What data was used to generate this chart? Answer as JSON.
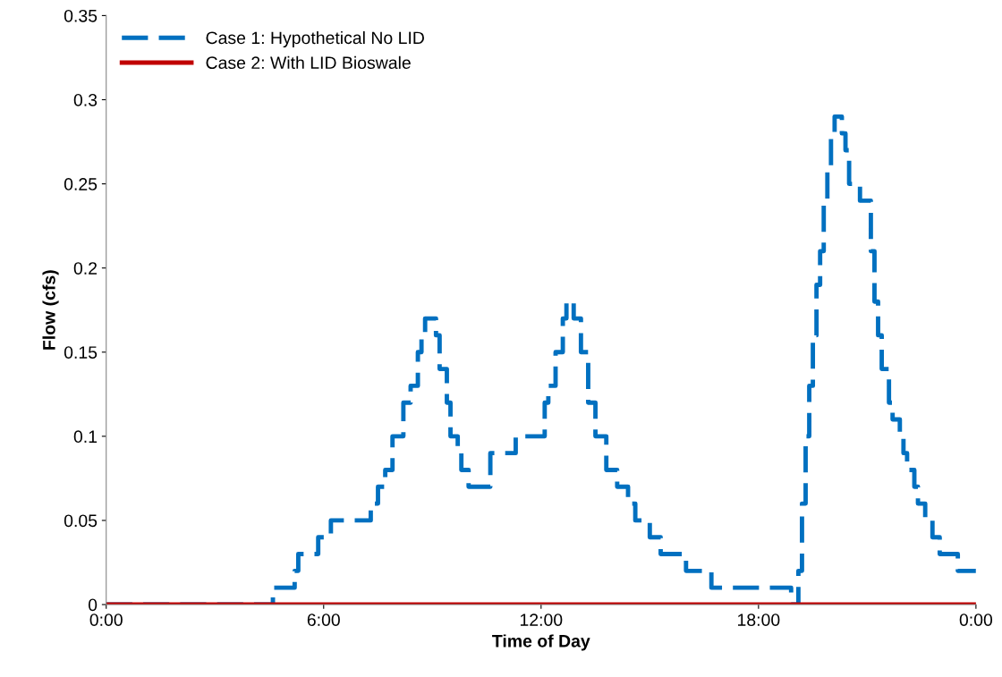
{
  "chart_data": {
    "type": "step",
    "xlabel": "Time of Day",
    "ylabel": "Flow (cfs)",
    "xlim": [
      0,
      24
    ],
    "ylim": [
      0,
      0.35
    ],
    "xticks": [
      {
        "value": 0,
        "label": "0:00"
      },
      {
        "value": 6,
        "label": "6:00"
      },
      {
        "value": 12,
        "label": "12:00"
      },
      {
        "value": 18,
        "label": "18:00"
      },
      {
        "value": 24,
        "label": "0:00"
      }
    ],
    "yticks": [
      0,
      0.05,
      0.1,
      0.15,
      0.2,
      0.25,
      0.3,
      0.35
    ],
    "grid": false,
    "legend": "top left",
    "marker": "none",
    "series": [
      {
        "name": "Case 1: Hypothetical No LID",
        "color": "#0070c0",
        "line_style": "dashed",
        "x": [
          0,
          4.6,
          5.2,
          5.3,
          5.85,
          6.2,
          7.3,
          7.5,
          7.7,
          7.9,
          8.2,
          8.4,
          8.6,
          8.7,
          8.8,
          9.1,
          9.2,
          9.4,
          9.5,
          9.7,
          9.8,
          10.0,
          10.6,
          11.3,
          12.1,
          12.2,
          12.4,
          12.6,
          12.7,
          12.9,
          13.1,
          13.3,
          13.5,
          13.8,
          14.1,
          14.4,
          14.6,
          15.0,
          15.3,
          16.0,
          16.7,
          18.9,
          19.1,
          19.2,
          19.3,
          19.4,
          19.5,
          19.6,
          19.7,
          19.8,
          19.9,
          20.0,
          20.1,
          20.3,
          20.4,
          20.5,
          20.8,
          21.1,
          21.2,
          21.3,
          21.4,
          21.6,
          21.7,
          21.9,
          22.0,
          22.1,
          22.3,
          22.4,
          22.6,
          22.8,
          23.0,
          23.5,
          23.8,
          24
        ],
        "values": [
          0,
          0.01,
          0.02,
          0.03,
          0.04,
          0.05,
          0.06,
          0.07,
          0.08,
          0.1,
          0.12,
          0.13,
          0.15,
          0.16,
          0.17,
          0.16,
          0.14,
          0.12,
          0.1,
          0.09,
          0.08,
          0.07,
          0.09,
          0.1,
          0.12,
          0.13,
          0.15,
          0.17,
          0.18,
          0.17,
          0.15,
          0.12,
          0.1,
          0.08,
          0.07,
          0.06,
          0.05,
          0.04,
          0.03,
          0.02,
          0.01,
          0,
          0.02,
          0.06,
          0.1,
          0.13,
          0.16,
          0.19,
          0.21,
          0.24,
          0.26,
          0.28,
          0.29,
          0.28,
          0.27,
          0.25,
          0.24,
          0.21,
          0.18,
          0.16,
          0.14,
          0.12,
          0.11,
          0.1,
          0.09,
          0.08,
          0.07,
          0.06,
          0.05,
          0.04,
          0.03,
          0.02,
          0.02,
          0.02
        ]
      },
      {
        "name": "Case 2: With LID Bioswale",
        "color": "#c00000",
        "line_style": "solid",
        "x": [
          0,
          24
        ],
        "values": [
          0,
          0
        ]
      }
    ]
  }
}
